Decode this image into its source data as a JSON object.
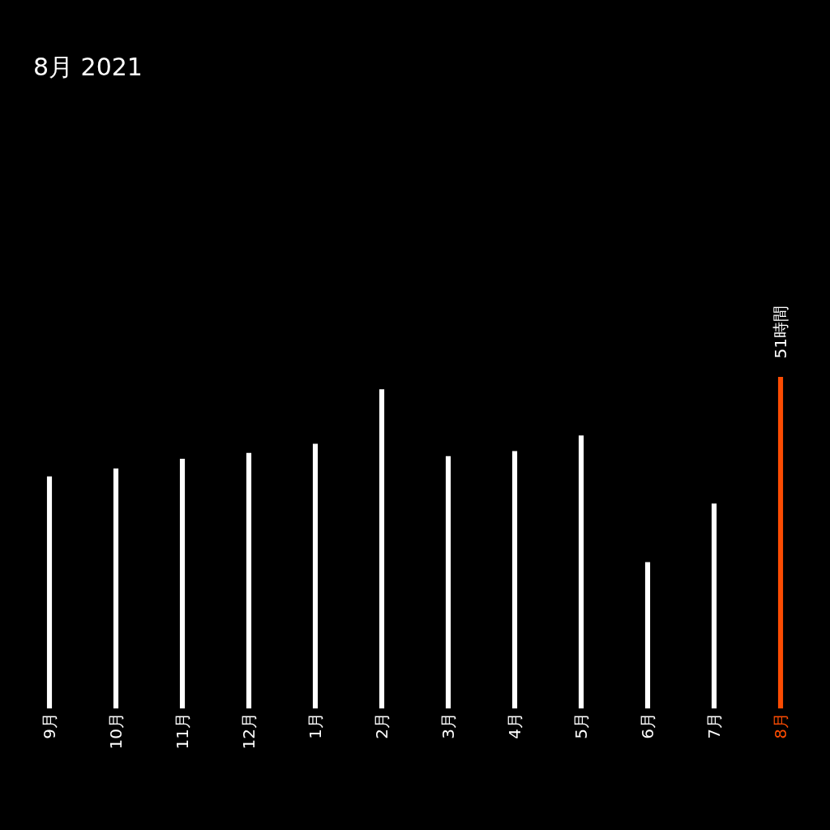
{
  "chart_data": {
    "type": "bar",
    "title": "8月 2021",
    "tick_labels": "x",
    "categories": [
      "9月",
      "10月",
      "11月",
      "12月",
      "1月",
      "2月",
      "3月",
      "4月",
      "5月",
      "6月",
      "7月",
      "8月"
    ],
    "values": [
      35.7,
      36.9,
      38.4,
      39.3,
      40.7,
      49.1,
      38.8,
      39.6,
      42.0,
      22.5,
      31.5,
      51
    ],
    "colors": [
      "#ffffff",
      "#ffffff",
      "#ffffff",
      "#ffffff",
      "#ffffff",
      "#ffffff",
      "#ffffff",
      "#ffffff",
      "#ffffff",
      "#ffffff",
      "#ffffff",
      "#fc4c02"
    ],
    "value_labels": [
      null,
      null,
      null,
      null,
      null,
      null,
      null,
      null,
      null,
      null,
      null,
      "51時間"
    ],
    "grid": false,
    "legend": false
  }
}
